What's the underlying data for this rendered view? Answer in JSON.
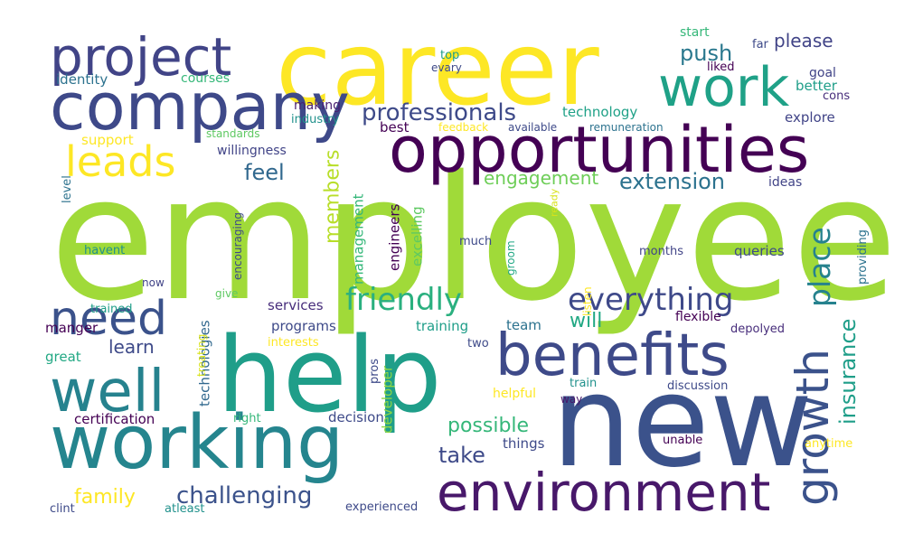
{
  "words": [
    {
      "text": "employee",
      "color": "#a0da39"
    },
    {
      "text": "career",
      "color": "#fde725"
    },
    {
      "text": "help",
      "color": "#1f9e89"
    },
    {
      "text": "new",
      "color": "#3b528b"
    },
    {
      "text": "working",
      "color": "#25858e"
    },
    {
      "text": "opportunities",
      "color": "#440154"
    },
    {
      "text": "company",
      "color": "#3e4989"
    },
    {
      "text": "benefits",
      "color": "#3e4a89"
    },
    {
      "text": "environment",
      "color": "#48186a"
    },
    {
      "text": "well",
      "color": "#26828e"
    },
    {
      "text": "work",
      "color": "#1fa187"
    },
    {
      "text": "project",
      "color": "#414487"
    },
    {
      "text": "growth",
      "color": "#3b528b"
    },
    {
      "text": "need",
      "color": "#3b528b"
    },
    {
      "text": "leads",
      "color": "#fde725"
    },
    {
      "text": "friendly",
      "color": "#2ab07f"
    },
    {
      "text": "everything",
      "color": "#3e4989"
    },
    {
      "text": "professionals",
      "color": "#3e4a89"
    },
    {
      "text": "place",
      "color": "#26828e"
    },
    {
      "text": "insurance",
      "color": "#1f9e89"
    },
    {
      "text": "challenging",
      "color": "#3b528b"
    },
    {
      "text": "family",
      "color": "#fde725"
    },
    {
      "text": "possible",
      "color": "#35b779"
    },
    {
      "text": "take",
      "color": "#3e4a89"
    },
    {
      "text": "extension",
      "color": "#2c728e"
    },
    {
      "text": "engagement",
      "color": "#6ece58"
    },
    {
      "text": "push",
      "color": "#2a788e"
    },
    {
      "text": "please",
      "color": "#414487"
    },
    {
      "text": "feel",
      "color": "#31688e"
    },
    {
      "text": "learn",
      "color": "#3e4a89"
    },
    {
      "text": "will",
      "color": "#22a884"
    },
    {
      "text": "members",
      "color": "#b8de29"
    },
    {
      "text": "technology",
      "color": "#1fa187"
    },
    {
      "text": "training",
      "color": "#1f9e89"
    },
    {
      "text": "team",
      "color": "#2c728e"
    },
    {
      "text": "programs",
      "color": "#3e4a89"
    },
    {
      "text": "services",
      "color": "#472d7b"
    },
    {
      "text": "technologies",
      "color": "#31688e"
    },
    {
      "text": "developer",
      "color": "#90d743"
    },
    {
      "text": "engineers",
      "color": "#440154"
    },
    {
      "text": "excelling",
      "color": "#5ec962"
    },
    {
      "text": "management",
      "color": "#35b779"
    },
    {
      "text": "groom",
      "color": "#22a884"
    },
    {
      "text": "listen",
      "color": "#fde725"
    },
    {
      "text": "ready",
      "color": "#d8e219"
    },
    {
      "text": "encouraging",
      "color": "#3e4a89"
    },
    {
      "text": "willingness",
      "color": "#414487"
    },
    {
      "text": "making",
      "color": "#481f70"
    },
    {
      "text": "industry",
      "color": "#21918c"
    },
    {
      "text": "best",
      "color": "#440154"
    },
    {
      "text": "feedback",
      "color": "#fde725"
    },
    {
      "text": "available",
      "color": "#3e4a89"
    },
    {
      "text": "remuneration",
      "color": "#2c728e"
    },
    {
      "text": "explore",
      "color": "#414487"
    },
    {
      "text": "cons",
      "color": "#472d7b"
    },
    {
      "text": "goal",
      "color": "#414487"
    },
    {
      "text": "better",
      "color": "#1f9e89"
    },
    {
      "text": "liked",
      "color": "#440154"
    },
    {
      "text": "far",
      "color": "#3e4a89"
    },
    {
      "text": "start",
      "color": "#35b779"
    },
    {
      "text": "top",
      "color": "#1f9e89"
    },
    {
      "text": "evary",
      "color": "#3e4a89"
    },
    {
      "text": "identity",
      "color": "#2c728e"
    },
    {
      "text": "courses",
      "color": "#35b779"
    },
    {
      "text": "support",
      "color": "#fde725"
    },
    {
      "text": "standards",
      "color": "#5ec962"
    },
    {
      "text": "ideas",
      "color": "#414487"
    },
    {
      "text": "queries",
      "color": "#3e4a89"
    },
    {
      "text": "months",
      "color": "#414487"
    },
    {
      "text": "providing",
      "color": "#2c728e"
    },
    {
      "text": "flexible",
      "color": "#440154"
    },
    {
      "text": "depolyed",
      "color": "#472d7b"
    },
    {
      "text": "discussion",
      "color": "#3e4a89"
    },
    {
      "text": "train",
      "color": "#21918c"
    },
    {
      "text": "way",
      "color": "#48186a"
    },
    {
      "text": "helpful",
      "color": "#fde725"
    },
    {
      "text": "two",
      "color": "#3e4a89"
    },
    {
      "text": "pros",
      "color": "#3e4a89"
    },
    {
      "text": "much",
      "color": "#3e4a89"
    },
    {
      "text": "interests",
      "color": "#fde725"
    },
    {
      "text": "trained",
      "color": "#1f9e89"
    },
    {
      "text": "manger",
      "color": "#440154"
    },
    {
      "text": "great",
      "color": "#22a884"
    },
    {
      "text": "now",
      "color": "#414487"
    },
    {
      "text": "give",
      "color": "#5ec962"
    },
    {
      "text": "havent",
      "color": "#21918c"
    },
    {
      "text": "level",
      "color": "#2c728e"
    },
    {
      "text": "treating",
      "color": "#d8e219"
    },
    {
      "text": "certification",
      "color": "#440154"
    },
    {
      "text": "right",
      "color": "#35b779"
    },
    {
      "text": "decision",
      "color": "#3e4a89"
    },
    {
      "text": "things",
      "color": "#3e4a89"
    },
    {
      "text": "unable",
      "color": "#440154"
    },
    {
      "text": "anytime",
      "color": "#fde725"
    },
    {
      "text": "experienced",
      "color": "#3e4a89"
    },
    {
      "text": "atleast",
      "color": "#21918c"
    },
    {
      "text": "clint",
      "color": "#3e4a89"
    }
  ]
}
